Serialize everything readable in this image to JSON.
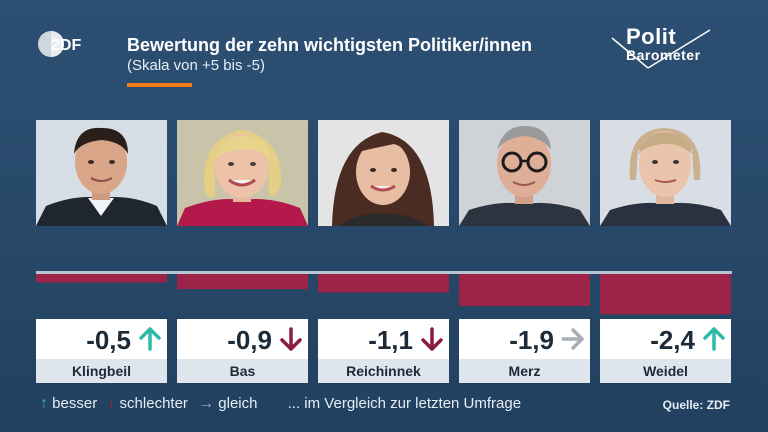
{
  "header": {
    "title": "Bewertung der zehn wichtigsten Politiker/innen",
    "subtitle": "(Skala von +5 bis -5)",
    "logo_left": "2DF",
    "logo_right_top": "Polit",
    "logo_right_bottom": "Barometer"
  },
  "colors": {
    "bar": "#9e2348",
    "accent_orange": "#f07d1b",
    "arrow_up": "#2fb9a6",
    "arrow_down": "#8b1e3f",
    "arrow_same": "#a7adb4"
  },
  "chart_data": {
    "type": "bar",
    "title": "Bewertung der zehn wichtigsten Politiker/innen",
    "subtitle": "(Skala von +5 bis -5)",
    "categories": [
      "Klingbeil",
      "Bas",
      "Reichinnek",
      "Merz",
      "Weidel"
    ],
    "values": [
      -0.5,
      -0.9,
      -1.1,
      -1.9,
      -2.4
    ],
    "value_labels": [
      "-0,5",
      "-0,9",
      "-1,1",
      "-1,9",
      "-2,4"
    ],
    "trend": [
      "up",
      "down",
      "down",
      "same",
      "up"
    ],
    "ylim": [
      -5,
      5
    ]
  },
  "legend": {
    "better": "besser",
    "worse": "schlechter",
    "same": "gleich",
    "note": "... im Vergleich zur letzten Umfrage"
  },
  "source": "Quelle: ZDF"
}
